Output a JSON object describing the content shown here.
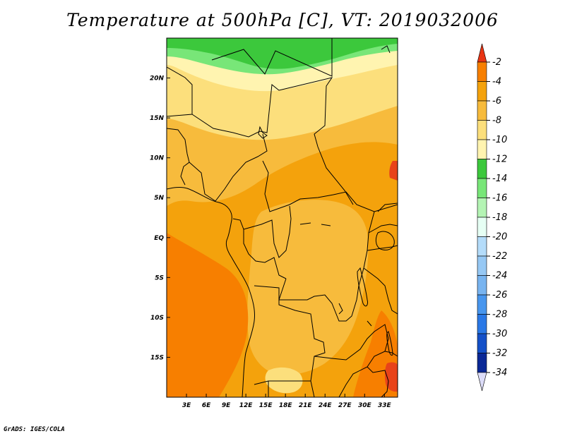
{
  "title": "Temperature at 500hPa [C], VT: 2019032006",
  "credit": "GrADS: IGES/COLA",
  "map": {
    "lon_range": [
      0,
      35
    ],
    "lat_range": [
      -20,
      25
    ],
    "x_ticks": [
      {
        "lon": 3,
        "label": "3E"
      },
      {
        "lon": 6,
        "label": "6E"
      },
      {
        "lon": 9,
        "label": "9E"
      },
      {
        "lon": 12,
        "label": "12E"
      },
      {
        "lon": 15,
        "label": "15E"
      },
      {
        "lon": 18,
        "label": "18E"
      },
      {
        "lon": 21,
        "label": "21E"
      },
      {
        "lon": 24,
        "label": "24E"
      },
      {
        "lon": 27,
        "label": "27E"
      },
      {
        "lon": 30,
        "label": "30E"
      },
      {
        "lon": 33,
        "label": "33E"
      }
    ],
    "y_ticks": [
      {
        "lat": 20,
        "label": "20N"
      },
      {
        "lat": 15,
        "label": "15N"
      },
      {
        "lat": 10,
        "label": "10N"
      },
      {
        "lat": 5,
        "label": "5N"
      },
      {
        "lat": 0,
        "label": "EQ"
      },
      {
        "lat": -5,
        "label": "5S"
      },
      {
        "lat": -10,
        "label": "10S"
      },
      {
        "lat": -15,
        "label": "15S"
      }
    ],
    "colors": {
      "c_gt2": "#e8431a",
      "c_4_2": "#f77f00",
      "c_6_4": "#f4a20c",
      "c_8_6": "#f7bb3c",
      "c_10_8": "#fcdf7c",
      "c_12_10": "#fff4b0",
      "c_14_12": "#3cc83c",
      "c_16_14": "#78e678"
    }
  },
  "colorbar": {
    "levels": [
      "-2",
      "-4",
      "-6",
      "-8",
      "-10",
      "-12",
      "-14",
      "-16",
      "-18",
      "-20",
      "-22",
      "-24",
      "-26",
      "-28",
      "-30",
      "-32",
      "-34"
    ],
    "colors": [
      "#fa3c00",
      "#f77f00",
      "#f4a20c",
      "#f7bb3c",
      "#fcdf7c",
      "#fff4b0",
      "#3cc83c",
      "#78e678",
      "#b4f4b4",
      "#e6fff4",
      "#b4dcfa",
      "#96c8f4",
      "#78b4f0",
      "#4896ee",
      "#2a78e6",
      "#1450c8",
      "#0a2896",
      "#0a1060"
    ],
    "end_colors": {
      "top": "#e83414",
      "bottom": "#dcdcf8"
    }
  }
}
